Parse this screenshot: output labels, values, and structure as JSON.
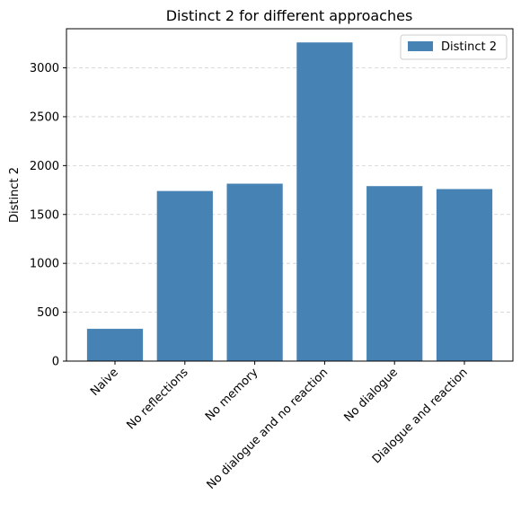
{
  "chart_data": {
    "type": "bar",
    "title": "Distinct 2 for different approaches",
    "xlabel": "",
    "ylabel": "Distinct 2",
    "categories": [
      "Naive",
      "No reflections",
      "No memory",
      "No dialogue and no reaction",
      "No dialogue",
      "Dialogue and reaction"
    ],
    "series": [
      {
        "name": "Distinct 2",
        "values": [
          330,
          1740,
          1815,
          3260,
          1790,
          1760
        ],
        "color": "#4682b4"
      }
    ],
    "ylim": [
      0,
      3400
    ],
    "yticks": [
      0,
      500,
      1000,
      1500,
      2000,
      2500,
      3000
    ],
    "grid": "y-dashed",
    "legend": "top-right"
  }
}
